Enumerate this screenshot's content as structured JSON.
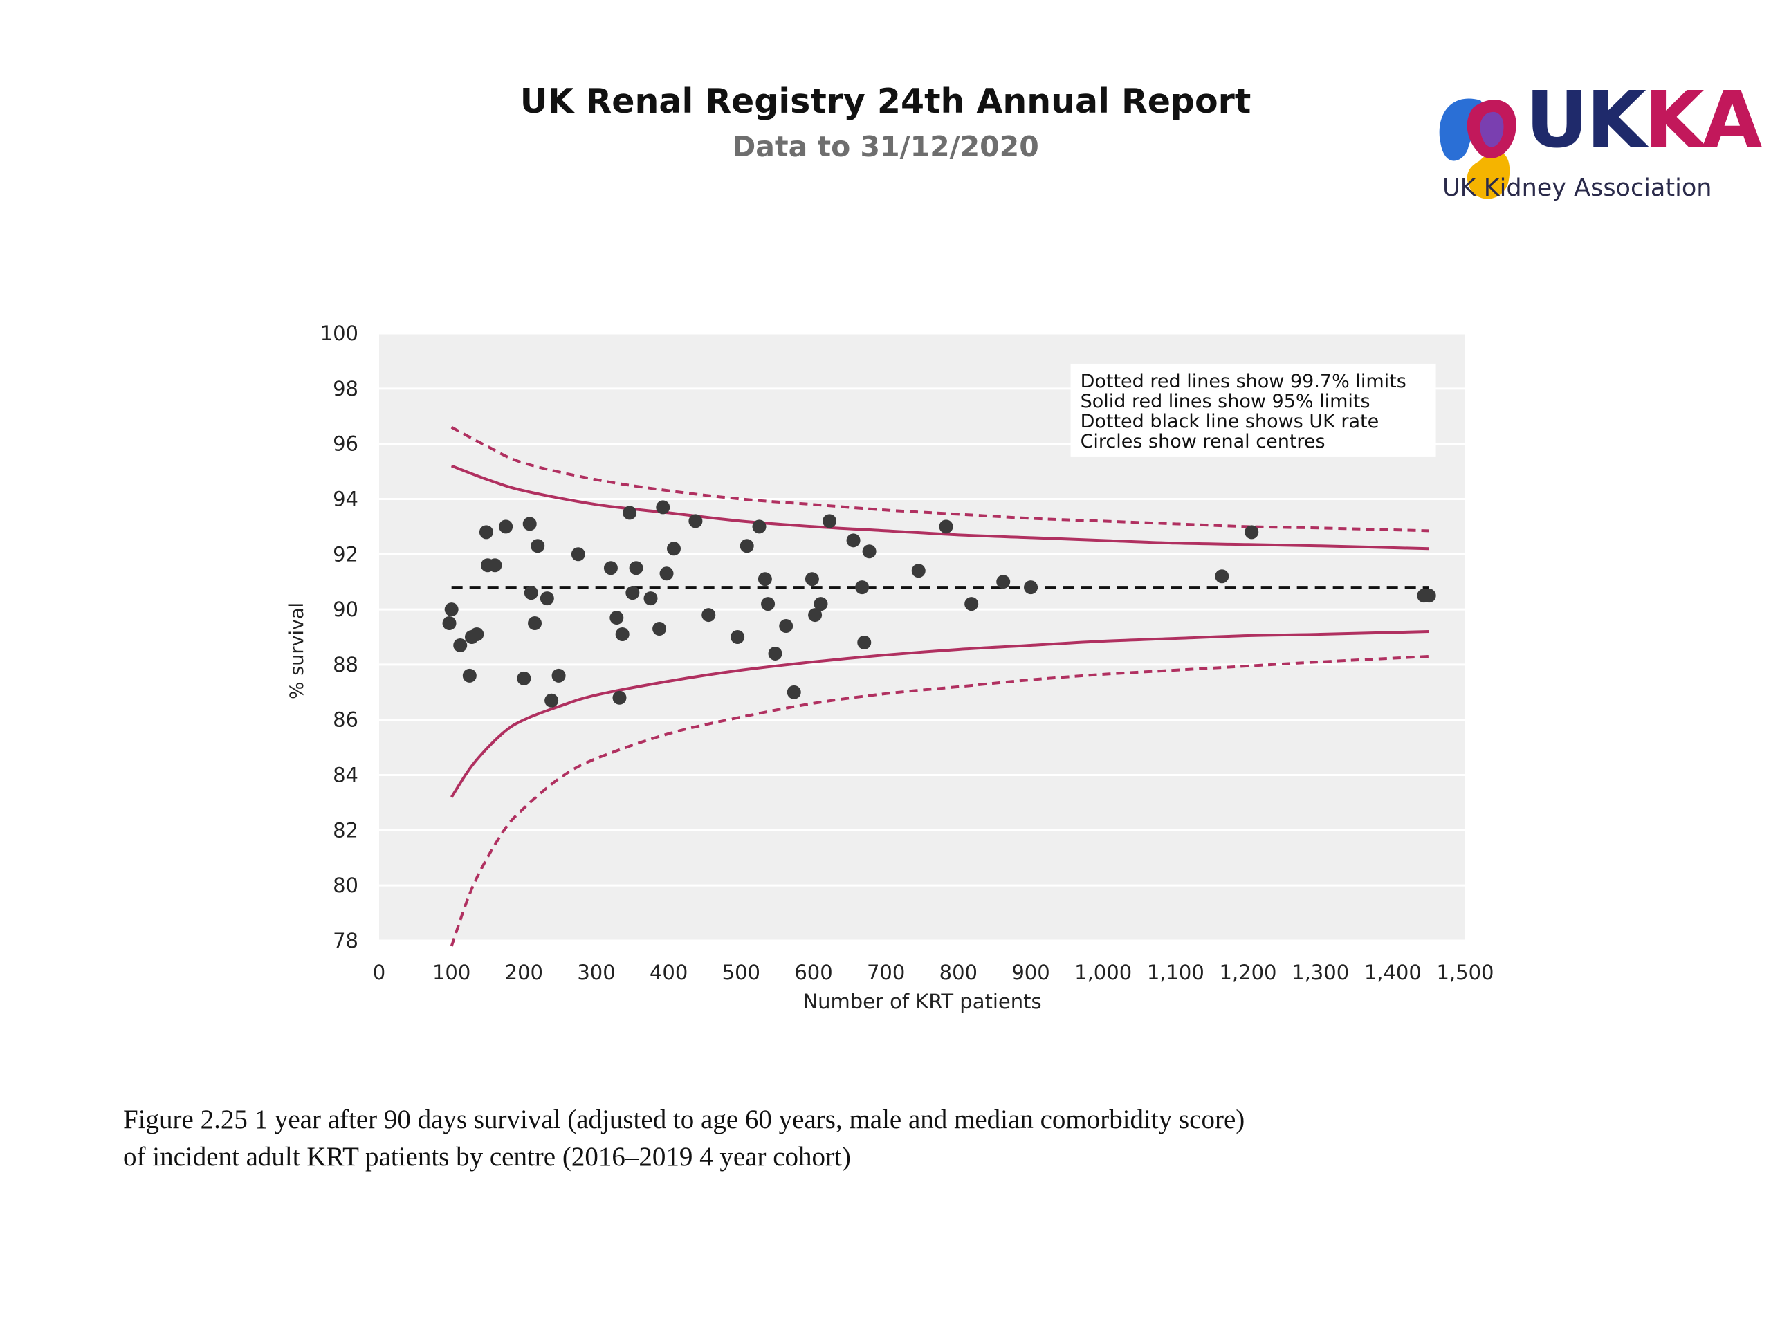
{
  "header": {
    "title": "UK Renal Registry 24th Annual Report",
    "subtitle": "Data to 31/12/2020"
  },
  "logo": {
    "text_uk": "UK",
    "text_ka": "KA",
    "subtitle": "UK Kidney Association",
    "colors": [
      "#2a6fd6",
      "#c2185b",
      "#f5b400",
      "#7a3fb0"
    ]
  },
  "caption": {
    "line1": "Figure 2.25 1 year after 90 days survival (adjusted to age 60 years, male and median comorbidity score)",
    "line2": "of incident adult KRT patients by centre (2016–2019 4 year cohort)"
  },
  "chart_data": {
    "type": "scatter",
    "xlabel": "Number of KRT patients",
    "ylabel": "% survival",
    "xlim": [
      0,
      1500
    ],
    "ylim": [
      78,
      100
    ],
    "xticks": [
      0,
      100,
      200,
      300,
      400,
      500,
      600,
      700,
      800,
      900,
      1000,
      1100,
      1200,
      1300,
      1400,
      1500
    ],
    "xtick_labels": [
      "0",
      "100",
      "200",
      "300",
      "400",
      "500",
      "600",
      "700",
      "800",
      "900",
      "1,000",
      "1,100",
      "1,200",
      "1,300",
      "1,400",
      "1,500"
    ],
    "yticks": [
      78,
      80,
      82,
      84,
      86,
      88,
      90,
      92,
      94,
      96,
      98,
      100
    ],
    "grid": true,
    "legend_position": "top-right",
    "legend_lines": [
      "Dotted red lines show 99.7% limits",
      "Solid red lines show 95% limits",
      "Dotted black line shows UK rate",
      "Circles show renal centres"
    ],
    "uk_rate": 90.8,
    "limit_x_range": [
      100,
      1450
    ],
    "colors": {
      "plot_bg": "#efefef",
      "grid": "#ffffff",
      "limits": "#b03060",
      "uk_rate": "#111111",
      "points": "#3a3a3a"
    },
    "limits_95_upper": [
      [
        100,
        95.2
      ],
      [
        150,
        94.7
      ],
      [
        200,
        94.3
      ],
      [
        300,
        93.8
      ],
      [
        400,
        93.5
      ],
      [
        500,
        93.2
      ],
      [
        600,
        93.0
      ],
      [
        700,
        92.85
      ],
      [
        800,
        92.7
      ],
      [
        900,
        92.6
      ],
      [
        1000,
        92.5
      ],
      [
        1100,
        92.4
      ],
      [
        1200,
        92.35
      ],
      [
        1300,
        92.3
      ],
      [
        1450,
        92.2
      ]
    ],
    "limits_95_lower": [
      [
        100,
        83.2
      ],
      [
        130,
        84.4
      ],
      [
        170,
        85.5
      ],
      [
        200,
        86.0
      ],
      [
        250,
        86.5
      ],
      [
        300,
        86.9
      ],
      [
        400,
        87.4
      ],
      [
        500,
        87.8
      ],
      [
        600,
        88.1
      ],
      [
        700,
        88.35
      ],
      [
        800,
        88.55
      ],
      [
        900,
        88.7
      ],
      [
        1000,
        88.85
      ],
      [
        1100,
        88.95
      ],
      [
        1200,
        89.05
      ],
      [
        1300,
        89.1
      ],
      [
        1450,
        89.2
      ]
    ],
    "limits_997_upper": [
      [
        100,
        96.6
      ],
      [
        150,
        95.9
      ],
      [
        200,
        95.3
      ],
      [
        300,
        94.7
      ],
      [
        400,
        94.3
      ],
      [
        500,
        94.0
      ],
      [
        600,
        93.8
      ],
      [
        700,
        93.6
      ],
      [
        800,
        93.45
      ],
      [
        900,
        93.3
      ],
      [
        1000,
        93.2
      ],
      [
        1100,
        93.1
      ],
      [
        1200,
        93.0
      ],
      [
        1300,
        92.95
      ],
      [
        1450,
        92.85
      ]
    ],
    "limits_997_lower": [
      [
        100,
        77.8
      ],
      [
        130,
        80.0
      ],
      [
        170,
        81.9
      ],
      [
        200,
        82.8
      ],
      [
        250,
        83.9
      ],
      [
        300,
        84.6
      ],
      [
        400,
        85.5
      ],
      [
        500,
        86.1
      ],
      [
        600,
        86.6
      ],
      [
        700,
        86.95
      ],
      [
        800,
        87.2
      ],
      [
        900,
        87.45
      ],
      [
        1000,
        87.65
      ],
      [
        1100,
        87.8
      ],
      [
        1200,
        87.95
      ],
      [
        1300,
        88.1
      ],
      [
        1450,
        88.3
      ]
    ],
    "points": [
      [
        97,
        89.5
      ],
      [
        100,
        90.0
      ],
      [
        112,
        88.7
      ],
      [
        125,
        87.6
      ],
      [
        128,
        89.0
      ],
      [
        135,
        89.1
      ],
      [
        148,
        92.8
      ],
      [
        150,
        91.6
      ],
      [
        160,
        91.6
      ],
      [
        175,
        93.0
      ],
      [
        200,
        87.5
      ],
      [
        208,
        93.1
      ],
      [
        210,
        90.6
      ],
      [
        215,
        89.5
      ],
      [
        219,
        92.3
      ],
      [
        232,
        90.4
      ],
      [
        238,
        86.7
      ],
      [
        248,
        87.6
      ],
      [
        275,
        92.0
      ],
      [
        320,
        91.5
      ],
      [
        328,
        89.7
      ],
      [
        332,
        86.8
      ],
      [
        336,
        89.1
      ],
      [
        346,
        93.5
      ],
      [
        350,
        90.6
      ],
      [
        355,
        91.5
      ],
      [
        375,
        90.4
      ],
      [
        387,
        89.3
      ],
      [
        392,
        93.7
      ],
      [
        397,
        91.3
      ],
      [
        407,
        92.2
      ],
      [
        437,
        93.2
      ],
      [
        455,
        89.8
      ],
      [
        495,
        89.0
      ],
      [
        508,
        92.3
      ],
      [
        525,
        93.0
      ],
      [
        533,
        91.1
      ],
      [
        537,
        90.2
      ],
      [
        547,
        88.4
      ],
      [
        562,
        89.4
      ],
      [
        573,
        87.0
      ],
      [
        598,
        91.1
      ],
      [
        602,
        89.8
      ],
      [
        610,
        90.2
      ],
      [
        622,
        93.2
      ],
      [
        655,
        92.5
      ],
      [
        667,
        90.8
      ],
      [
        670,
        88.8
      ],
      [
        677,
        92.1
      ],
      [
        745,
        91.4
      ],
      [
        783,
        93.0
      ],
      [
        818,
        90.2
      ],
      [
        862,
        91.0
      ],
      [
        900,
        90.8
      ],
      [
        1164,
        91.2
      ],
      [
        1205,
        92.8
      ],
      [
        1443,
        90.5
      ],
      [
        1450,
        90.5
      ]
    ]
  }
}
